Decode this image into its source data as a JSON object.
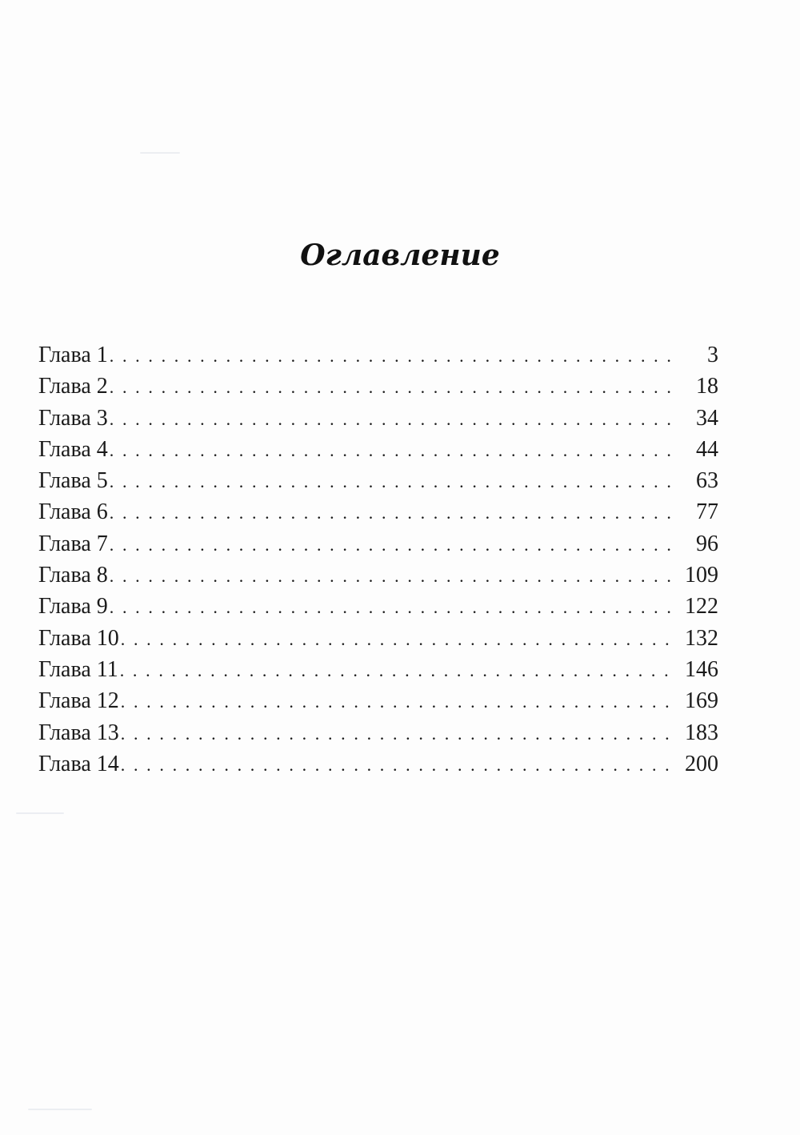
{
  "title": "Оглавление",
  "toc": [
    {
      "label": "Глава 1",
      "page": "3"
    },
    {
      "label": "Глава 2",
      "page": "18"
    },
    {
      "label": "Глава 3",
      "page": "34"
    },
    {
      "label": "Глава 4",
      "page": "44"
    },
    {
      "label": "Глава 5",
      "page": "63"
    },
    {
      "label": "Глава 6",
      "page": "77"
    },
    {
      "label": "Глава 7",
      "page": "96"
    },
    {
      "label": "Глава 8",
      "page": "109"
    },
    {
      "label": "Глава 9",
      "page": "122"
    },
    {
      "label": "Глава 10",
      "page": "132"
    },
    {
      "label": "Глава 11",
      "page": "146"
    },
    {
      "label": "Глава 12",
      "page": "169"
    },
    {
      "label": "Глава 13",
      "page": "183"
    },
    {
      "label": "Глава 14",
      "page": "200"
    }
  ]
}
